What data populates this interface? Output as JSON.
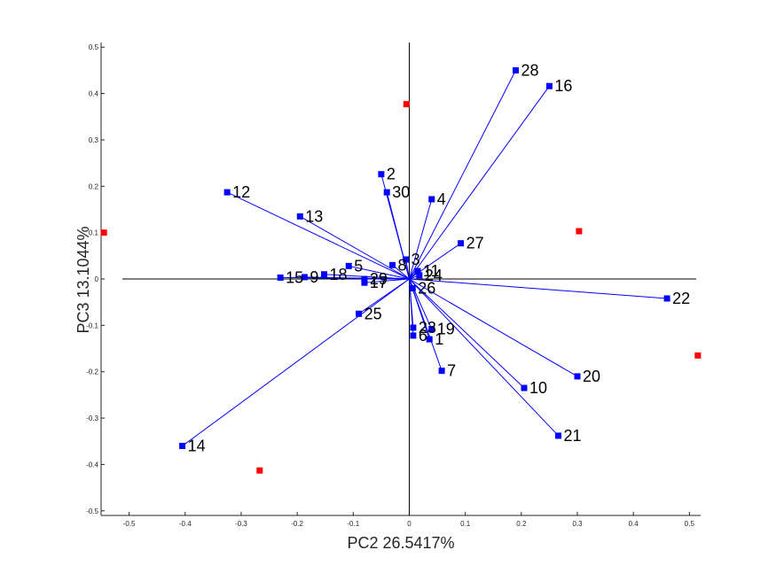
{
  "chart_data": {
    "type": "scatter",
    "subtype": "biplot",
    "xlabel": "PC2 26.5417%",
    "ylabel": "PC3 13.1044%",
    "xlim": [
      -0.55,
      0.52
    ],
    "ylim": [
      -0.51,
      0.51
    ],
    "xticks": [
      -0.5,
      -0.4,
      -0.3,
      -0.2,
      -0.1,
      0,
      0.1,
      0.2,
      0.3,
      0.4,
      0.5
    ],
    "yticks": [
      -0.5,
      -0.4,
      -0.3,
      -0.2,
      -0.1,
      0,
      0.1,
      0.2,
      0.3,
      0.4,
      0.5
    ],
    "grid": false,
    "colors": {
      "vector": "#0000ff",
      "variable_marker": "#0000ff",
      "observation_marker": "#ff0000",
      "axis": "#000000"
    },
    "series": [
      {
        "name": "",
        "style": "vectors",
        "points": [
          {
            "label": "1",
            "x": 0.036,
            "y": -0.13
          },
          {
            "label": "2",
            "x": -0.05,
            "y": 0.226
          },
          {
            "label": "3",
            "x": -0.006,
            "y": 0.042
          },
          {
            "label": "4",
            "x": 0.04,
            "y": 0.172
          },
          {
            "label": "5",
            "x": -0.108,
            "y": 0.028
          },
          {
            "label": "6",
            "x": 0.007,
            "y": -0.122
          },
          {
            "label": "7",
            "x": 0.058,
            "y": -0.198
          },
          {
            "label": "8",
            "x": -0.03,
            "y": 0.03
          },
          {
            "label": "9",
            "x": -0.187,
            "y": 0.004
          },
          {
            "label": "10",
            "x": 0.205,
            "y": -0.235
          },
          {
            "label": "11",
            "x": 0.015,
            "y": 0.017
          },
          {
            "label": "12",
            "x": -0.325,
            "y": 0.187
          },
          {
            "label": "13",
            "x": -0.195,
            "y": 0.135
          },
          {
            "label": "14",
            "x": -0.405,
            "y": -0.36
          },
          {
            "label": "15",
            "x": -0.23,
            "y": 0.003
          },
          {
            "label": "16",
            "x": 0.25,
            "y": 0.416
          },
          {
            "label": "17",
            "x": -0.08,
            "y": -0.008
          },
          {
            "label": "18",
            "x": -0.152,
            "y": 0.01
          },
          {
            "label": "19",
            "x": 0.04,
            "y": -0.108
          },
          {
            "label": "20",
            "x": 0.3,
            "y": -0.21
          },
          {
            "label": "21",
            "x": 0.266,
            "y": -0.338
          },
          {
            "label": "22",
            "x": 0.46,
            "y": -0.042
          },
          {
            "label": "23",
            "x": 0.007,
            "y": -0.105
          },
          {
            "label": "24",
            "x": 0.018,
            "y": 0.008
          },
          {
            "label": "25",
            "x": -0.09,
            "y": -0.075
          },
          {
            "label": "26",
            "x": 0.006,
            "y": -0.02
          },
          {
            "label": "27",
            "x": 0.092,
            "y": 0.077
          },
          {
            "label": "28",
            "x": 0.19,
            "y": 0.45
          },
          {
            "label": "29",
            "x": -0.08,
            "y": 0.0
          },
          {
            "label": "30",
            "x": -0.04,
            "y": 0.187
          }
        ]
      },
      {
        "name": "",
        "style": "markers",
        "points": [
          {
            "x": -0.545,
            "y": 0.1
          },
          {
            "x": -0.005,
            "y": 0.377
          },
          {
            "x": 0.303,
            "y": 0.103
          },
          {
            "x": 0.515,
            "y": -0.165
          },
          {
            "x": -0.267,
            "y": -0.413
          }
        ]
      }
    ]
  }
}
